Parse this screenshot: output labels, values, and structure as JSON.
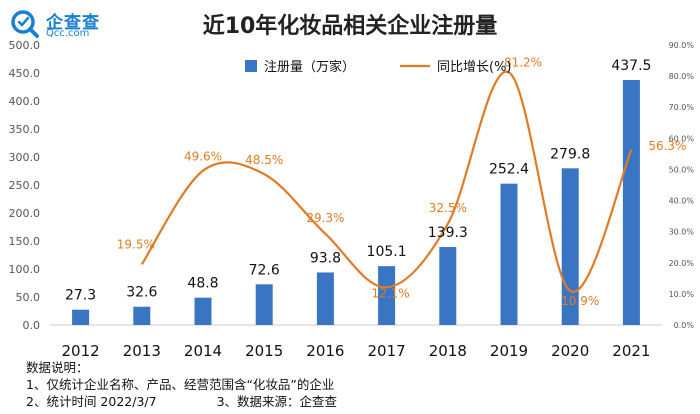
{
  "logo": {
    "name": "企查查",
    "sub": "Qcc.com"
  },
  "chart_data": {
    "type": "bar+line",
    "title": "近10年化妆品相关企业注册量",
    "categories": [
      "2012",
      "2013",
      "2014",
      "2015",
      "2016",
      "2017",
      "2018",
      "2019",
      "2020",
      "2021"
    ],
    "series": [
      {
        "name": "注册量（万家）",
        "type": "bar",
        "axis": "left",
        "color": "#3a75c4",
        "values": [
          27.3,
          32.6,
          48.8,
          72.6,
          93.8,
          105.1,
          139.3,
          252.4,
          279.8,
          437.5
        ],
        "labels": [
          "27.3",
          "32.6",
          "48.8",
          "72.6",
          "93.8",
          "105.1",
          "139.3",
          "252.4",
          "279.8",
          "437.5"
        ]
      },
      {
        "name": "同比增长(%)",
        "type": "line",
        "axis": "right",
        "color": "#e07b25",
        "values": [
          null,
          19.5,
          49.6,
          48.5,
          29.3,
          12.1,
          32.5,
          81.2,
          10.9,
          56.3
        ],
        "labels": [
          "",
          "19.5%",
          "49.6%",
          "48.5%",
          "29.3%",
          "12.1%",
          "32.5%",
          "81.2%",
          "10.9%",
          "56.3%"
        ]
      }
    ],
    "y_left": {
      "min": 0,
      "max": 500,
      "step": 50,
      "ticks": [
        "0.0",
        "50.0",
        "100.0",
        "150.0",
        "200.0",
        "250.0",
        "300.0",
        "350.0",
        "400.0",
        "450.0",
        "500.0"
      ]
    },
    "y_right": {
      "min": 0,
      "max": 90,
      "step": 10,
      "ticks": [
        "0.0%",
        "10.0%",
        "20.0%",
        "30.0%",
        "40.0%",
        "50.0%",
        "60.0%",
        "70.0%",
        "80.0%",
        "90.0%"
      ]
    },
    "legend_position": "top-center",
    "grid": false
  },
  "notes": {
    "heading": "数据说明：",
    "line1": "1、仅统计企业名称、产品、经营范围含“化妆品”的企业",
    "line2": "2、统计时间 2022/3/7",
    "line3": "3、数据来源：企查查"
  }
}
